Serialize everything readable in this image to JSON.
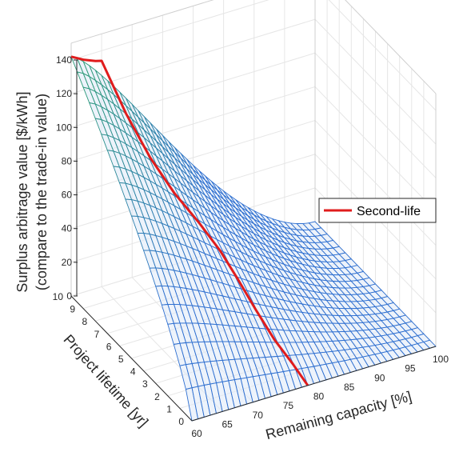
{
  "chart_data": {
    "type": "surface",
    "zlabel": [
      "Surplus arbitrage value [$/kWh]",
      "(compare to the trade-in value)"
    ],
    "ylabel": "Project lifetime [yr]",
    "xlabel": "Remaining capacity [%]",
    "x_ticks": [
      "60",
      "65",
      "70",
      "75",
      "80",
      "85",
      "90",
      "95",
      "100"
    ],
    "y_ticks": [
      "0",
      "1",
      "2",
      "3",
      "4",
      "5",
      "6",
      "7",
      "8",
      "9",
      "10"
    ],
    "z_ticks": [
      "0",
      "20",
      "40",
      "60",
      "80",
      "100",
      "120",
      "140"
    ],
    "xlim": [
      60,
      100
    ],
    "ylim": [
      0,
      10
    ],
    "zlim": [
      0,
      140
    ],
    "grid": true,
    "legend": {
      "position": "right",
      "entries": [
        {
          "name": "Second-life",
          "color": "#e01c1c"
        }
      ]
    },
    "series": [
      {
        "name": "Second-life",
        "type": "line3d",
        "points": [
          {
            "capacity": 60,
            "lifetime": 10,
            "value": 142
          },
          {
            "capacity": 62,
            "lifetime": 10,
            "value": 138
          },
          {
            "capacity": 64,
            "lifetime": 10,
            "value": 135
          },
          {
            "capacity": 65,
            "lifetime": 10,
            "value": 134
          },
          {
            "capacity": 67,
            "lifetime": 9,
            "value": 108
          },
          {
            "capacity": 69,
            "lifetime": 8,
            "value": 87
          },
          {
            "capacity": 71,
            "lifetime": 7,
            "value": 71
          },
          {
            "capacity": 73,
            "lifetime": 6,
            "value": 59
          },
          {
            "capacity": 74.5,
            "lifetime": 5,
            "value": 48
          },
          {
            "capacity": 75.5,
            "lifetime": 4,
            "value": 37
          },
          {
            "capacity": 76.5,
            "lifetime": 3,
            "value": 25
          },
          {
            "capacity": 77.5,
            "lifetime": 2,
            "value": 14
          },
          {
            "capacity": 78.5,
            "lifetime": 1,
            "value": 6
          },
          {
            "capacity": 79,
            "lifetime": 0,
            "value": 0
          }
        ]
      }
    ],
    "surface": {
      "value_at_60pct_10yr": 142,
      "value_at_100pct": 0,
      "value_at_0yr": 0,
      "colormap": [
        "#2e6fd0",
        "#2c9a78"
      ]
    }
  }
}
